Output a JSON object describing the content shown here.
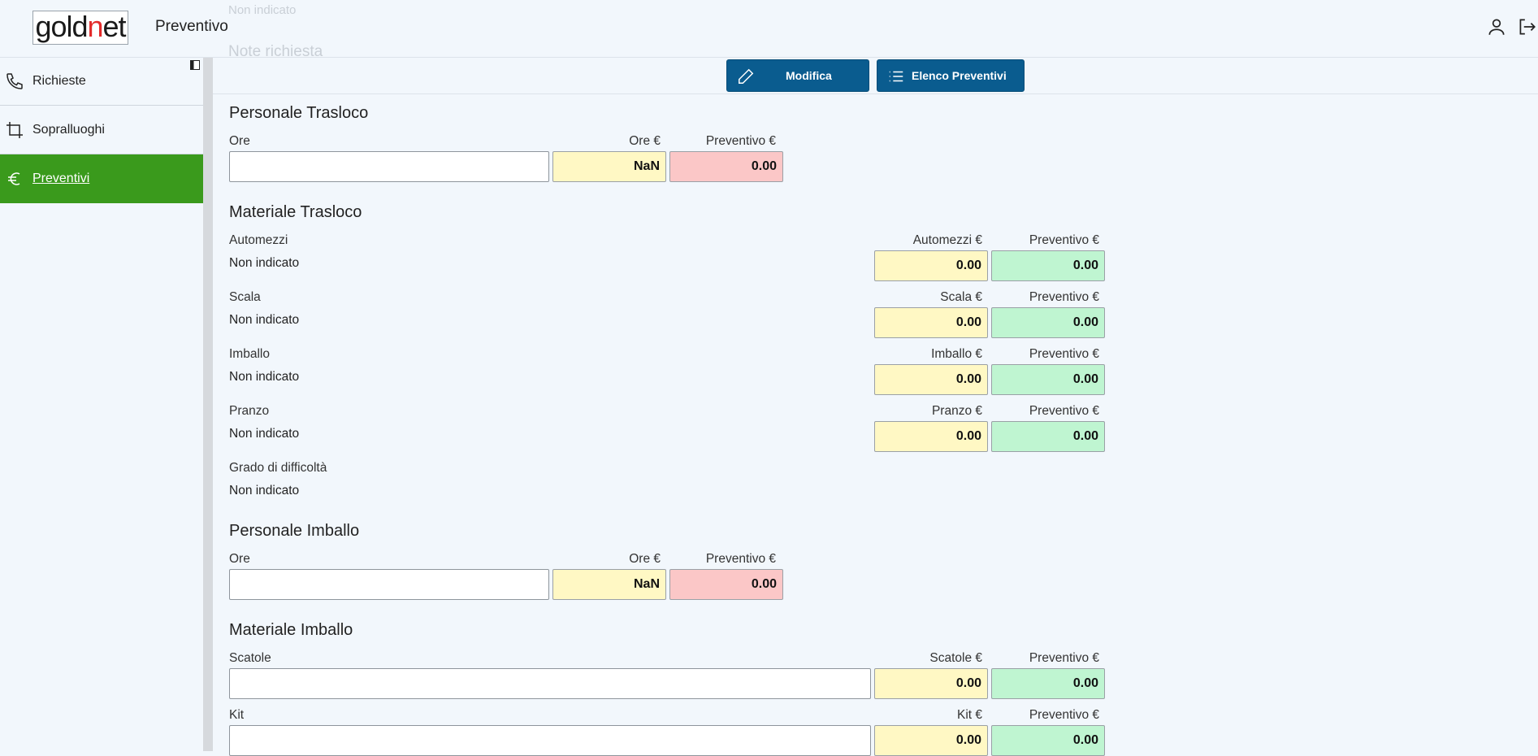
{
  "header": {
    "logo_part1": "gold",
    "logo_part2": "n",
    "logo_part3": "et",
    "title": "Preventivo",
    "ghost_line1": "Non indicato",
    "ghost_line2": "Note richiesta"
  },
  "sidebar": {
    "items": [
      {
        "label": "Richieste",
        "icon": "phone-icon"
      },
      {
        "label": "Sopralluoghi",
        "icon": "crop-icon"
      },
      {
        "label": "Preventivi",
        "icon": "euro-icon",
        "active": true
      }
    ]
  },
  "toolbar": {
    "modifica_label": "Modifica",
    "elenco_label": "Elenco Preventivi"
  },
  "personale_trasloco": {
    "title": "Personale Trasloco",
    "ore_label": "Ore",
    "ore_eur_label": "Ore €",
    "preventivo_label": "Preventivo €",
    "ore_value": "",
    "ore_eur_value": "NaN",
    "preventivo_value": "0.00"
  },
  "materiale_trasloco": {
    "title": "Materiale Trasloco",
    "rows": [
      {
        "label": "Automezzi",
        "value": "Non indicato",
        "eur_label": "Automezzi €",
        "eur_value": "0.00",
        "preventivo_label": "Preventivo €",
        "preventivo_value": "0.00"
      },
      {
        "label": "Scala",
        "value": "Non indicato",
        "eur_label": "Scala €",
        "eur_value": "0.00",
        "preventivo_label": "Preventivo €",
        "preventivo_value": "0.00"
      },
      {
        "label": "Imballo",
        "value": "Non indicato",
        "eur_label": "Imballo €",
        "eur_value": "0.00",
        "preventivo_label": "Preventivo €",
        "preventivo_value": "0.00"
      },
      {
        "label": "Pranzo",
        "value": "Non indicato",
        "eur_label": "Pranzo €",
        "eur_value": "0.00",
        "preventivo_label": "Preventivo €",
        "preventivo_value": "0.00"
      }
    ],
    "difficolta_label": "Grado di difficoltà",
    "difficolta_value": "Non indicato"
  },
  "personale_imballo": {
    "title": "Personale Imballo",
    "ore_label": "Ore",
    "ore_eur_label": "Ore €",
    "preventivo_label": "Preventivo €",
    "ore_value": "",
    "ore_eur_value": "NaN",
    "preventivo_value": "0.00"
  },
  "materiale_imballo": {
    "title": "Materiale Imballo",
    "rows": [
      {
        "label": "Scatole",
        "value": "",
        "eur_label": "Scatole €",
        "eur_value": "0.00",
        "preventivo_label": "Preventivo €",
        "preventivo_value": "0.00"
      },
      {
        "label": "Kit",
        "value": "",
        "eur_label": "Kit €",
        "eur_value": "0.00",
        "preventivo_label": "Preventivo €",
        "preventivo_value": "0.00"
      }
    ]
  },
  "colors": {
    "accent": "#0a5c8f",
    "active_nav": "#3a9a1c",
    "yellow_field": "#fff8c4",
    "red_field": "#fbc7c7",
    "green_field": "#bff5d1"
  }
}
